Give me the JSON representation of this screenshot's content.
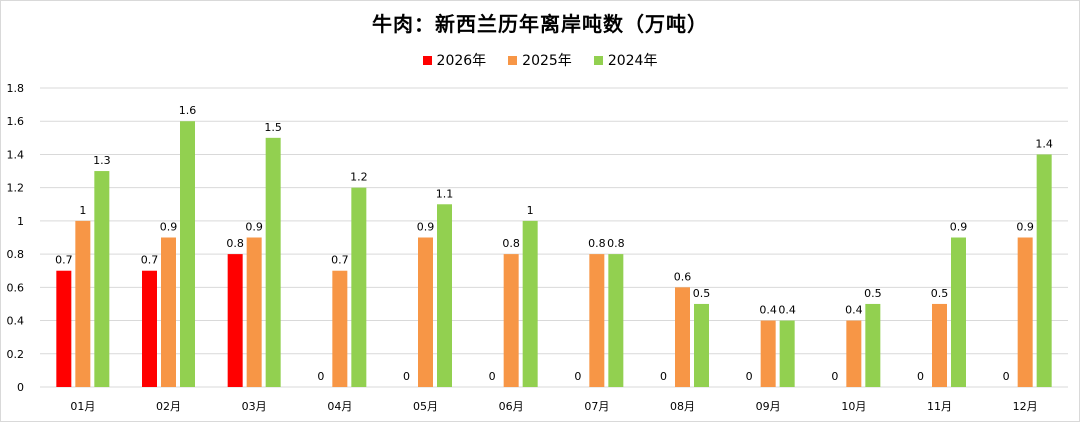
{
  "chart_data": {
    "type": "bar",
    "title": "牛肉：新西兰历年离岸吨数（万吨）",
    "categories": [
      "01月",
      "02月",
      "03月",
      "04月",
      "05月",
      "06月",
      "07月",
      "08月",
      "09月",
      "10月",
      "11月",
      "12月"
    ],
    "series": [
      {
        "name": "2026年",
        "color": "#ff0000",
        "values": [
          0.7,
          0.7,
          0.8,
          0,
          0,
          0,
          0,
          0,
          0,
          0,
          0,
          0
        ]
      },
      {
        "name": "2025年",
        "color": "#f79646",
        "values": [
          1,
          0.9,
          0.9,
          0.7,
          0.9,
          0.8,
          0.8,
          0.6,
          0.4,
          0.4,
          0.5,
          0.9
        ]
      },
      {
        "name": "2024年",
        "color": "#92d050",
        "values": [
          1.3,
          1.6,
          1.5,
          1.2,
          1.1,
          1,
          0.8,
          0.5,
          0.4,
          0.5,
          0.9,
          1.4
        ]
      }
    ],
    "ylim": [
      0,
      1.8
    ],
    "yticks": [
      "0",
      "0.2",
      "0.4",
      "0.6",
      "0.8",
      "1",
      "1.2",
      "1.4",
      "1.6",
      "1.8"
    ],
    "grid": true,
    "legend": "top-center"
  }
}
